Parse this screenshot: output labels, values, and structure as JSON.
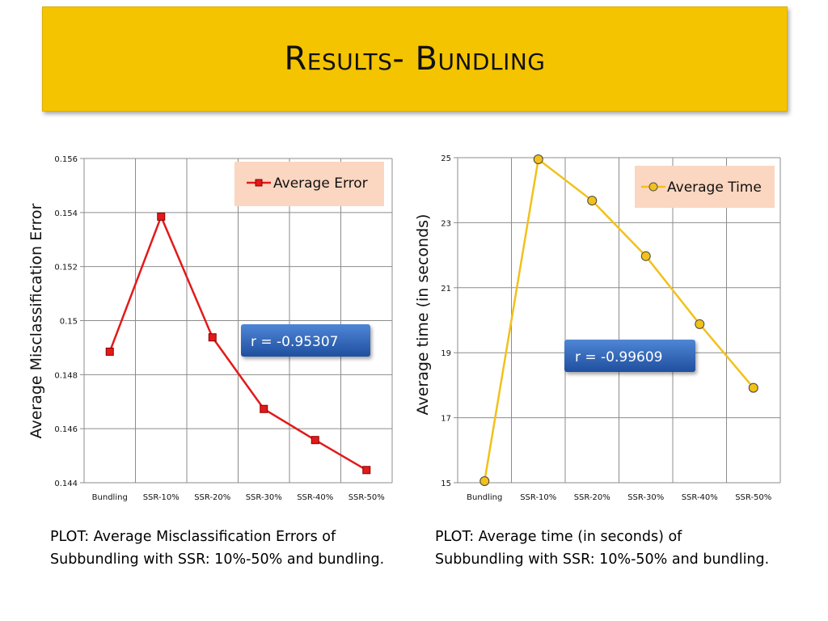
{
  "slide": {
    "title": "Results- Bundling",
    "colors": {
      "banner": "#f5c400"
    }
  },
  "chart_data": [
    {
      "type": "line",
      "categories": [
        "Bundling",
        "SSR-10%",
        "SSR-20%",
        "SSR-30%",
        "SSR-40%",
        "SSR-50%"
      ],
      "series": [
        {
          "name": "Average Error",
          "values": [
            0.14885,
            0.15385,
            0.14938,
            0.14673,
            0.14558,
            0.14447
          ],
          "color": "#e21a1a",
          "marker": "square"
        }
      ],
      "ylabel": "Average Misclassification Error",
      "ylim": [
        0.144,
        0.156
      ],
      "yticks": [
        "0.144",
        "0.146",
        "0.148",
        "0.15",
        "0.152",
        "0.154",
        "0.156"
      ],
      "grid": true,
      "legend_position": "top-right",
      "annotation": "r = -0.95307",
      "caption": "PLOT: Average Misclassification Errors of\nSubbundling with SSR: 10%-50% and bundling."
    },
    {
      "type": "line",
      "categories": [
        "Bundling",
        "SSR-10%",
        "SSR-20%",
        "SSR-30%",
        "SSR-40%",
        "SSR-50%"
      ],
      "series": [
        {
          "name": "Average Time",
          "values": [
            15.05,
            24.95,
            23.68,
            21.97,
            19.88,
            17.92
          ],
          "color": "#f2c11a",
          "marker": "circle"
        }
      ],
      "ylabel": "Average time  (in seconds)",
      "ylim": [
        15,
        25
      ],
      "yticks": [
        "15",
        "17",
        "19",
        "21",
        "23",
        "25"
      ],
      "grid": true,
      "legend_position": "top-right",
      "annotation": "r = -0.99609",
      "caption": "PLOT: Average time (in seconds) of\nSubbundling with SSR: 10%-50% and bundling."
    }
  ]
}
